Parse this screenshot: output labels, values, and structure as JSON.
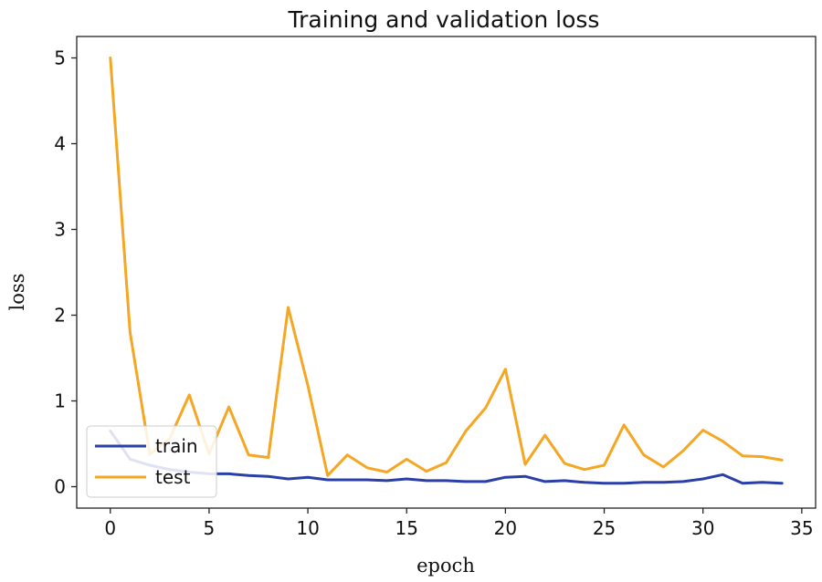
{
  "chart_data": {
    "type": "line",
    "title": "Training and validation loss",
    "xlabel": "epoch",
    "ylabel": "loss",
    "xlim": [
      -1.7,
      35.7
    ],
    "ylim": [
      -0.25,
      5.25
    ],
    "xticks": [
      0,
      5,
      10,
      15,
      20,
      25,
      30,
      35
    ],
    "yticks": [
      0,
      1,
      2,
      3,
      4,
      5
    ],
    "grid": false,
    "legend_position": "lower-left",
    "x": [
      0,
      1,
      2,
      3,
      4,
      5,
      6,
      7,
      8,
      9,
      10,
      11,
      12,
      13,
      14,
      15,
      16,
      17,
      18,
      19,
      20,
      21,
      22,
      23,
      24,
      25,
      26,
      27,
      28,
      29,
      30,
      31,
      32,
      33,
      34
    ],
    "series": [
      {
        "name": "train",
        "color": "#2b3fa8",
        "values": [
          0.65,
          0.32,
          0.25,
          0.2,
          0.17,
          0.15,
          0.15,
          0.13,
          0.12,
          0.09,
          0.11,
          0.08,
          0.08,
          0.08,
          0.07,
          0.09,
          0.07,
          0.07,
          0.06,
          0.06,
          0.11,
          0.12,
          0.06,
          0.07,
          0.05,
          0.04,
          0.04,
          0.05,
          0.05,
          0.06,
          0.09,
          0.14,
          0.04,
          0.05,
          0.04
        ]
      },
      {
        "name": "test",
        "color": "#f5a623",
        "values": [
          5.0,
          1.8,
          0.38,
          0.56,
          1.07,
          0.38,
          0.93,
          0.37,
          0.34,
          2.09,
          1.18,
          0.13,
          0.37,
          0.22,
          0.17,
          0.32,
          0.18,
          0.28,
          0.65,
          0.92,
          1.37,
          0.26,
          0.6,
          0.27,
          0.2,
          0.25,
          0.72,
          0.37,
          0.23,
          0.42,
          0.66,
          0.53,
          0.36,
          0.35,
          0.31
        ]
      }
    ]
  }
}
